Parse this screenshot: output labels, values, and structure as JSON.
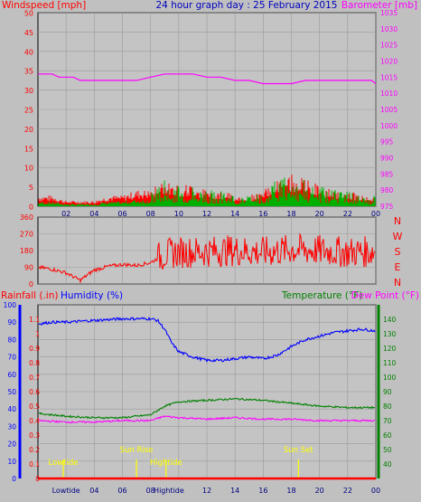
{
  "colors": {
    "background": "#c0c0c0",
    "plot_bg": "#c4c4c4",
    "wind_speed": "#ff0000",
    "wind_gust": "#a00000",
    "wind_avg": "#00b000",
    "barometer": "#ff00ff",
    "title": "#0000c0",
    "humidity": "#0000ff",
    "temperature": "#008000",
    "dewpoint": "#ff00ff",
    "rain_axis": "#ff0000",
    "events": "#ffff00",
    "grid": "#9a9a9a"
  },
  "chart_data": [
    {
      "id": "wind-baro",
      "type": "line",
      "title": "24 hour graph day : 25 February 2015",
      "ylabel_left": "Windspeed [mph]",
      "ylabel_right": "Barometer [mb]",
      "ylim_left": [
        0,
        50
      ],
      "ylim_right": [
        975,
        1035
      ],
      "yticks_left": [
        "0",
        "5",
        "10",
        "15",
        "20",
        "25",
        "30",
        "35",
        "40",
        "45",
        "50"
      ],
      "yticks_right": [
        "975",
        "980",
        "985",
        "990",
        "995",
        "1000",
        "1005",
        "1010",
        "1015",
        "1020",
        "1025",
        "1030",
        "1035"
      ],
      "xlim": [
        0,
        24
      ],
      "xticks": [
        "02",
        "04",
        "06",
        "08",
        "10",
        "12",
        "14",
        "16",
        "18",
        "20",
        "22",
        "00"
      ],
      "grid": true,
      "series": [
        {
          "name": "Windspeed",
          "x": [
            0,
            1,
            2,
            3,
            4,
            5,
            6,
            7,
            8,
            9,
            10,
            11,
            12,
            13,
            14,
            15,
            16,
            17,
            18,
            19,
            20,
            21,
            22,
            23,
            24
          ],
          "values": [
            1,
            1,
            0.5,
            0.5,
            0.5,
            1,
            1,
            1.5,
            1.5,
            2.5,
            2,
            2,
            1.5,
            1.5,
            1,
            1,
            1.5,
            2.5,
            3,
            2.5,
            2,
            1.5,
            1.5,
            1,
            1
          ]
        },
        {
          "name": "Barometer",
          "x": [
            0,
            1,
            1.5,
            2.5,
            3,
            5,
            7,
            8,
            9,
            11,
            12,
            13,
            14,
            15,
            16,
            17,
            18,
            19,
            20,
            21,
            22,
            23,
            23.7,
            24
          ],
          "values": [
            1016,
            1016,
            1015,
            1015,
            1014,
            1014,
            1014,
            1015,
            1016,
            1016,
            1015,
            1015,
            1014,
            1014,
            1013,
            1013,
            1013,
            1014,
            1014,
            1014,
            1014,
            1014,
            1014,
            1013
          ]
        }
      ]
    },
    {
      "id": "wind-direction",
      "type": "line",
      "ylim": [
        0,
        360
      ],
      "yticks": [
        "0",
        "90",
        "180",
        "270",
        "360"
      ],
      "compass": [
        "N",
        "W",
        "S",
        "E",
        "N"
      ],
      "xlim": [
        0,
        24
      ],
      "series": [
        {
          "name": "Wind direction",
          "x": [
            0,
            1,
            2,
            3,
            4,
            5,
            6,
            7,
            8,
            9,
            10,
            12,
            14,
            16,
            18,
            20,
            22,
            24
          ],
          "values": [
            90,
            80,
            60,
            20,
            75,
            95,
            105,
            100,
            115,
            160,
            170,
            175,
            180,
            170,
            185,
            180,
            170,
            175
          ]
        }
      ]
    },
    {
      "id": "temp-hum",
      "type": "line",
      "ylabel_left_1": "Rainfall (.in)",
      "ylabel_left_2": "Humidity (%)",
      "ylabel_right_1": "Temperature (°F)",
      "ylabel_right_2": "Dew Point (°F)",
      "ylim_rain": [
        0,
        1.2
      ],
      "ylim_humidity": [
        0,
        100
      ],
      "ylim_temperature": [
        30,
        150
      ],
      "yticks_rain": [
        "0",
        "0.1",
        "0.2",
        "0.3",
        "0.4",
        "0.5",
        "0.6",
        "0.7",
        "0.8",
        "0.9",
        "1",
        "1.1"
      ],
      "yticks_humidity": [
        "0",
        "10",
        "20",
        "30",
        "40",
        "50",
        "60",
        "70",
        "80",
        "90",
        "100"
      ],
      "yticks_temperature": [
        "40",
        "50",
        "60",
        "70",
        "80",
        "90",
        "100",
        "110",
        "120",
        "130",
        "140"
      ],
      "xlim": [
        0,
        24
      ],
      "xticks": [
        "02",
        "04",
        "06",
        "08",
        "10",
        "12",
        "14",
        "16",
        "18",
        "20",
        "22",
        "00"
      ],
      "series": [
        {
          "name": "Humidity",
          "axis": "humidity",
          "x": [
            0,
            1,
            2,
            4,
            6,
            8,
            8.5,
            9,
            9.5,
            10,
            11,
            12,
            13,
            14,
            15,
            16,
            17,
            18,
            19,
            20,
            21,
            22,
            23,
            24
          ],
          "values": [
            89,
            90,
            90,
            91,
            92,
            92,
            91,
            86,
            78,
            73,
            70,
            68,
            68,
            69,
            70,
            69,
            71,
            76,
            80,
            82,
            84,
            85,
            86,
            85
          ]
        },
        {
          "name": "Temperature",
          "axis": "temperature",
          "x": [
            0,
            2,
            4,
            6,
            8,
            9,
            10,
            12,
            14,
            16,
            18,
            20,
            22,
            24
          ],
          "values": [
            75,
            73,
            72,
            72,
            74,
            80,
            83,
            84,
            85,
            84,
            82,
            80,
            79,
            79
          ]
        },
        {
          "name": "Dew Point",
          "axis": "temperature",
          "x": [
            0,
            2,
            4,
            6,
            8,
            9,
            10,
            12,
            14,
            16,
            18,
            20,
            22,
            24
          ],
          "values": [
            70,
            69,
            69,
            70,
            70,
            73,
            72,
            71,
            72,
            71,
            71,
            70,
            70,
            70
          ]
        },
        {
          "name": "Rainfall",
          "axis": "rain",
          "x": [
            0,
            24
          ],
          "values": [
            0,
            0
          ]
        }
      ],
      "events": [
        {
          "label": "Lowtide",
          "x": 1.8
        },
        {
          "label": "Sun Rise",
          "x": 7.0
        },
        {
          "label": "Hightide",
          "x": 9.1
        },
        {
          "label": "Sun Set",
          "x": 18.5
        }
      ],
      "bottom_labels": [
        "Lowtide",
        "Hightide"
      ]
    }
  ]
}
